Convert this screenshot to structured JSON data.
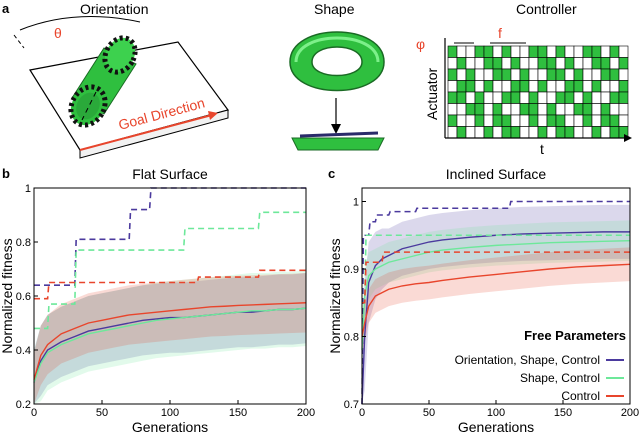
{
  "panel_labels": {
    "a": "a",
    "b": "b",
    "c": "c"
  },
  "panel_a": {
    "orientation_title": "Orientation",
    "theta_label": "θ",
    "goal_direction_label": "Goal Direction",
    "shape_title": "Shape",
    "controller_title": "Controller",
    "phi_label": "φ",
    "f_label": "f",
    "actuator_label": "Actuator",
    "t_label": "t",
    "grid_rows": [
      [
        1,
        0,
        0,
        1,
        1,
        0,
        1,
        0,
        0,
        1,
        1,
        0,
        1,
        0,
        0,
        1,
        1,
        0,
        1,
        0
      ],
      [
        0,
        1,
        0,
        0,
        1,
        1,
        0,
        1,
        0,
        0,
        1,
        1,
        0,
        1,
        0,
        0,
        1,
        1,
        0,
        1
      ],
      [
        1,
        0,
        1,
        0,
        0,
        1,
        1,
        0,
        1,
        0,
        0,
        1,
        1,
        0,
        1,
        0,
        0,
        1,
        1,
        0
      ],
      [
        0,
        1,
        1,
        0,
        1,
        0,
        0,
        1,
        1,
        0,
        1,
        0,
        0,
        1,
        1,
        0,
        1,
        0,
        0,
        1
      ],
      [
        1,
        1,
        0,
        1,
        0,
        0,
        1,
        1,
        0,
        1,
        0,
        0,
        1,
        1,
        0,
        1,
        0,
        0,
        1,
        1
      ],
      [
        0,
        0,
        1,
        1,
        0,
        1,
        0,
        0,
        1,
        1,
        0,
        1,
        0,
        0,
        1,
        1,
        0,
        1,
        0,
        0
      ],
      [
        1,
        0,
        0,
        1,
        0,
        1,
        1,
        0,
        0,
        1,
        0,
        1,
        1,
        0,
        0,
        1,
        0,
        1,
        1,
        0
      ],
      [
        0,
        1,
        0,
        0,
        1,
        0,
        1,
        1,
        0,
        0,
        1,
        0,
        1,
        1,
        0,
        0,
        1,
        0,
        1,
        1
      ]
    ],
    "colors": {
      "green": "#2fbf3f",
      "accent": "#e8452c"
    }
  },
  "chart_data": [
    {
      "type": "line",
      "title": "Flat Surface",
      "xlabel": "Generations",
      "ylabel": "Normalized fitness",
      "xlim": [
        0,
        200
      ],
      "ylim": [
        0.2,
        1.0
      ],
      "xticks": [
        0,
        50,
        100,
        150,
        200
      ],
      "yticks": [
        0.2,
        0.4,
        0.6,
        0.8,
        1.0
      ],
      "xtick_labels": [
        "0",
        "50",
        "100",
        "150",
        "200"
      ],
      "ytick_labels": [
        "0.2",
        "0.4",
        "0.6",
        "0.8",
        "1"
      ],
      "series": [
        {
          "name": "Orientation, Shape, Control",
          "color": "#4b3a9e",
          "x": [
            0,
            5,
            10,
            20,
            30,
            40,
            50,
            60,
            70,
            80,
            90,
            100,
            110,
            120,
            130,
            140,
            150,
            160,
            170,
            180,
            190,
            200
          ],
          "values": [
            0.28,
            0.36,
            0.4,
            0.43,
            0.45,
            0.47,
            0.48,
            0.49,
            0.5,
            0.51,
            0.515,
            0.52,
            0.52,
            0.525,
            0.53,
            0.535,
            0.54,
            0.54,
            0.545,
            0.55,
            0.55,
            0.555
          ],
          "band": [
            0.12,
            0.13,
            0.13,
            0.13,
            0.13,
            0.13,
            0.13,
            0.13,
            0.13,
            0.13,
            0.13,
            0.13,
            0.13,
            0.13,
            0.13,
            0.13,
            0.13,
            0.13,
            0.13,
            0.13,
            0.13,
            0.13
          ],
          "best": {
            "x": [
              0,
              30,
              31,
              70,
              71,
              85,
              86,
              200
            ],
            "values": [
              0.64,
              0.64,
              0.81,
              0.81,
              0.92,
              0.92,
              1.0,
              1.0
            ]
          }
        },
        {
          "name": "Shape, Control",
          "color": "#6de89a",
          "x": [
            0,
            5,
            10,
            20,
            30,
            40,
            50,
            60,
            70,
            80,
            90,
            100,
            110,
            120,
            130,
            140,
            150,
            160,
            170,
            180,
            190,
            200
          ],
          "values": [
            0.28,
            0.35,
            0.39,
            0.42,
            0.44,
            0.46,
            0.47,
            0.48,
            0.49,
            0.5,
            0.51,
            0.515,
            0.52,
            0.525,
            0.53,
            0.535,
            0.54,
            0.545,
            0.545,
            0.55,
            0.55,
            0.555
          ],
          "band": [
            0.12,
            0.14,
            0.14,
            0.14,
            0.14,
            0.14,
            0.14,
            0.14,
            0.14,
            0.14,
            0.14,
            0.14,
            0.14,
            0.14,
            0.14,
            0.14,
            0.14,
            0.14,
            0.14,
            0.14,
            0.14,
            0.14
          ],
          "best": {
            "x": [
              0,
              10,
              11,
              30,
              31,
              110,
              111,
              165,
              166,
              200
            ],
            "values": [
              0.48,
              0.48,
              0.57,
              0.57,
              0.77,
              0.77,
              0.85,
              0.85,
              0.91,
              0.91
            ]
          }
        },
        {
          "name": "Control",
          "color": "#e8452c",
          "x": [
            0,
            5,
            10,
            20,
            30,
            40,
            50,
            60,
            70,
            80,
            90,
            100,
            110,
            120,
            130,
            140,
            150,
            160,
            170,
            180,
            190,
            200
          ],
          "values": [
            0.29,
            0.38,
            0.42,
            0.46,
            0.48,
            0.5,
            0.51,
            0.52,
            0.53,
            0.535,
            0.54,
            0.545,
            0.55,
            0.555,
            0.56,
            0.562,
            0.565,
            0.567,
            0.569,
            0.571,
            0.573,
            0.575
          ],
          "band": [
            0.1,
            0.11,
            0.11,
            0.11,
            0.11,
            0.11,
            0.11,
            0.11,
            0.11,
            0.11,
            0.11,
            0.11,
            0.11,
            0.11,
            0.11,
            0.11,
            0.11,
            0.11,
            0.11,
            0.11,
            0.11,
            0.11
          ],
          "best": {
            "x": [
              0,
              10,
              11,
              120,
              121,
              165,
              166,
              200
            ],
            "values": [
              0.59,
              0.59,
              0.65,
              0.65,
              0.67,
              0.67,
              0.695,
              0.695
            ]
          }
        }
      ]
    },
    {
      "type": "line",
      "title": "Inclined Surface",
      "xlabel": "Generations",
      "ylabel": "Normalized fitness",
      "xlim": [
        0,
        200
      ],
      "ylim": [
        0.7,
        1.02
      ],
      "xticks": [
        0,
        50,
        100,
        150,
        200
      ],
      "yticks": [
        0.7,
        0.8,
        0.9,
        1.0
      ],
      "xtick_labels": [
        "0",
        "50",
        "100",
        "150",
        "200"
      ],
      "ytick_labels": [
        "0.7",
        "0.8",
        "0.9",
        "1"
      ],
      "legend": {
        "title": "Free Parameters",
        "position": "bottom-right"
      },
      "series": [
        {
          "name": "Orientation, Shape, Control",
          "color": "#4b3a9e",
          "x": [
            0,
            2,
            5,
            10,
            15,
            20,
            30,
            40,
            50,
            60,
            80,
            100,
            120,
            140,
            160,
            180,
            200
          ],
          "values": [
            0.7,
            0.8,
            0.88,
            0.905,
            0.915,
            0.92,
            0.93,
            0.935,
            0.94,
            0.943,
            0.947,
            0.95,
            0.952,
            0.953,
            0.954,
            0.955,
            0.955
          ],
          "band": [
            0.05,
            0.08,
            0.06,
            0.05,
            0.045,
            0.04,
            0.04,
            0.04,
            0.04,
            0.04,
            0.04,
            0.04,
            0.04,
            0.04,
            0.04,
            0.04,
            0.04
          ],
          "best": {
            "x": [
              0,
              1,
              5,
              6,
              10,
              11,
              20,
              21,
              40,
              41,
              110,
              111,
              200
            ],
            "values": [
              0.7,
              0.95,
              0.95,
              0.97,
              0.97,
              0.98,
              0.98,
              0.985,
              0.985,
              0.99,
              0.99,
              1.0,
              1.0
            ]
          }
        },
        {
          "name": "Shape, Control",
          "color": "#6de89a",
          "x": [
            0,
            2,
            5,
            10,
            15,
            20,
            30,
            40,
            50,
            60,
            80,
            100,
            120,
            140,
            160,
            180,
            200
          ],
          "values": [
            0.78,
            0.86,
            0.89,
            0.9,
            0.905,
            0.91,
            0.915,
            0.92,
            0.925,
            0.928,
            0.932,
            0.935,
            0.937,
            0.939,
            0.94,
            0.941,
            0.942
          ],
          "band": [
            0.04,
            0.04,
            0.035,
            0.03,
            0.03,
            0.03,
            0.03,
            0.03,
            0.03,
            0.03,
            0.03,
            0.03,
            0.03,
            0.03,
            0.03,
            0.03,
            0.03
          ],
          "best": {
            "x": [
              0,
              2,
              3,
              200
            ],
            "values": [
              0.85,
              0.85,
              0.95,
              0.95
            ]
          }
        },
        {
          "name": "Control",
          "color": "#e8452c",
          "x": [
            0,
            2,
            5,
            10,
            15,
            20,
            30,
            40,
            50,
            60,
            80,
            100,
            120,
            140,
            160,
            180,
            200
          ],
          "values": [
            0.8,
            0.82,
            0.845,
            0.86,
            0.865,
            0.87,
            0.875,
            0.878,
            0.88,
            0.883,
            0.888,
            0.892,
            0.896,
            0.9,
            0.903,
            0.905,
            0.907
          ],
          "band": [
            0.03,
            0.03,
            0.025,
            0.025,
            0.025,
            0.025,
            0.025,
            0.025,
            0.025,
            0.025,
            0.025,
            0.025,
            0.025,
            0.025,
            0.025,
            0.025,
            0.025
          ],
          "best": {
            "x": [
              0,
              2,
              3,
              15,
              16,
              200
            ],
            "values": [
              0.85,
              0.85,
              0.91,
              0.91,
              0.925,
              0.925
            ]
          }
        }
      ]
    }
  ]
}
